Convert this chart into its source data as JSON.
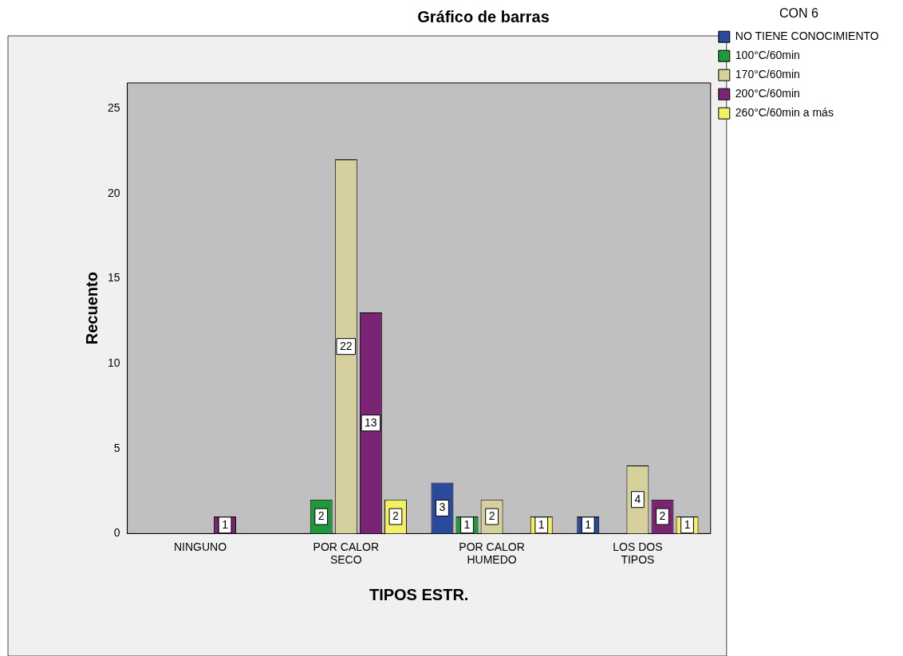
{
  "chart_data": {
    "type": "bar",
    "title": "Gráfico de barras",
    "xlabel": "TIPOS ESTR.",
    "ylabel": "Recuento",
    "legend_title": "CON 6",
    "categories": [
      "NINGUNO",
      "POR CALOR SECO",
      "POR CALOR HUMEDO",
      "LOS DOS TIPOS"
    ],
    "series": [
      {
        "name": "NO TIENE CONOCIMIENTO",
        "color": "#2b4a9c",
        "values": [
          null,
          null,
          3,
          1
        ]
      },
      {
        "name": "100°C/60min",
        "color": "#1e9a3c",
        "values": [
          null,
          2,
          1,
          null
        ]
      },
      {
        "name": "170°C/60min",
        "color": "#d6d09c",
        "values": [
          null,
          22,
          2,
          4
        ]
      },
      {
        "name": "200°C/60min",
        "color": "#7b2473",
        "values": [
          1,
          13,
          null,
          2
        ]
      },
      {
        "name": "260°C/60min a más",
        "color": "#f4f064",
        "values": [
          null,
          2,
          1,
          1
        ]
      }
    ],
    "ylim": [
      0,
      26.5
    ],
    "yticks": [
      0,
      5,
      10,
      15,
      20,
      25
    ],
    "grid": false,
    "legend": "right",
    "data_labels": true
  }
}
